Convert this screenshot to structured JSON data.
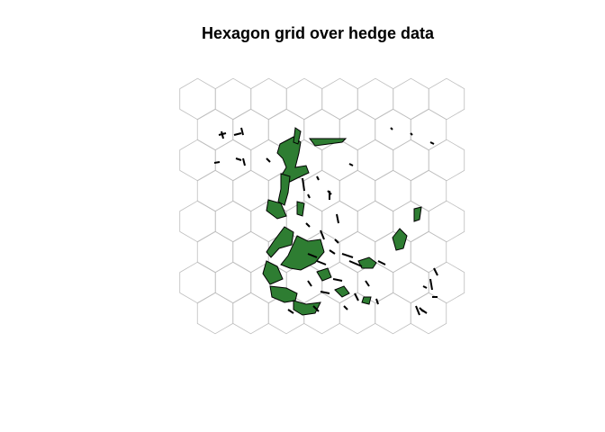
{
  "title": "Hexagon grid over hedge data",
  "style": {
    "grid_stroke": "#bebebe",
    "hedge_fill": "#2e7d32",
    "hedge_stroke": "#000000"
  }
}
